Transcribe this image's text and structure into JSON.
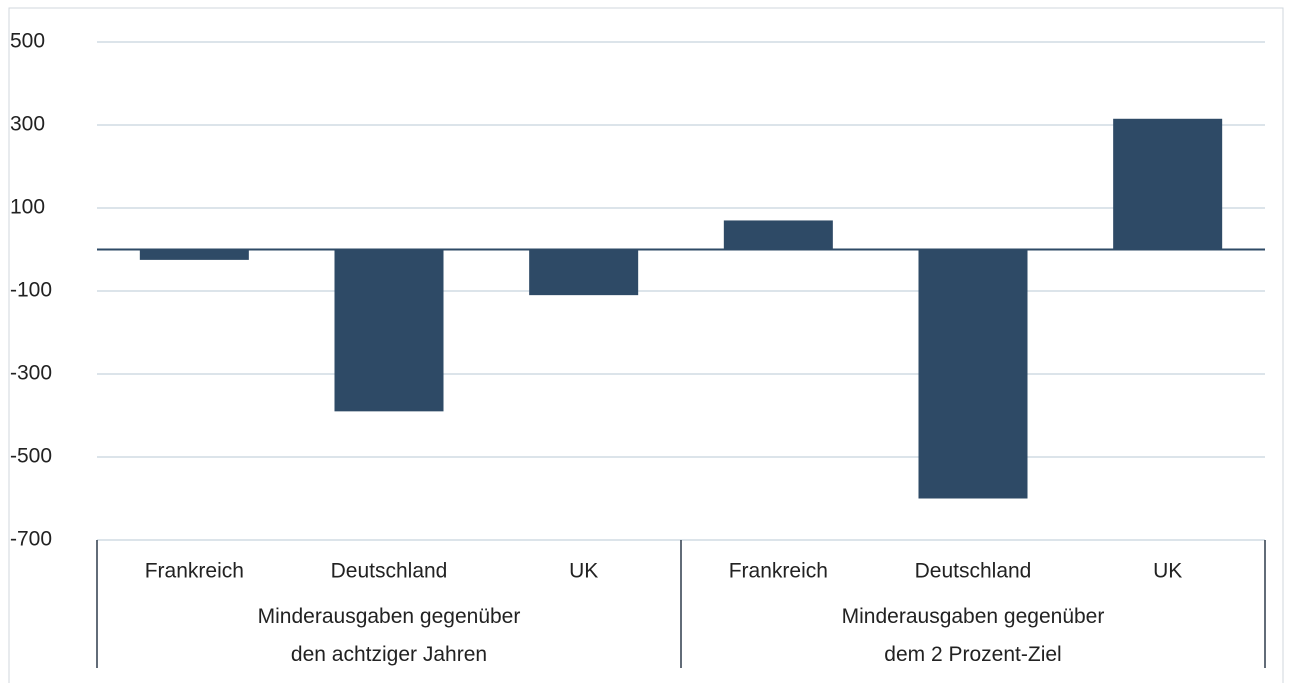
{
  "chart_data": {
    "type": "bar",
    "groups": [
      {
        "label": "Minderausgaben gegenüber\nden achtziger Jahren",
        "categories": [
          "Frankreich",
          "Deutschland",
          "UK"
        ],
        "values": [
          -25,
          -390,
          -110
        ]
      },
      {
        "label": "Minderausgaben gegenüber\ndem 2 Prozent-Ziel",
        "categories": [
          "Frankreich",
          "Deutschland",
          "UK"
        ],
        "values": [
          70,
          -600,
          315
        ]
      }
    ],
    "color": "#2e4a66",
    "ylim": [
      -700,
      500
    ],
    "yticks": [
      500,
      300,
      100,
      -100,
      -300,
      -500,
      -700
    ],
    "grid": true
  }
}
